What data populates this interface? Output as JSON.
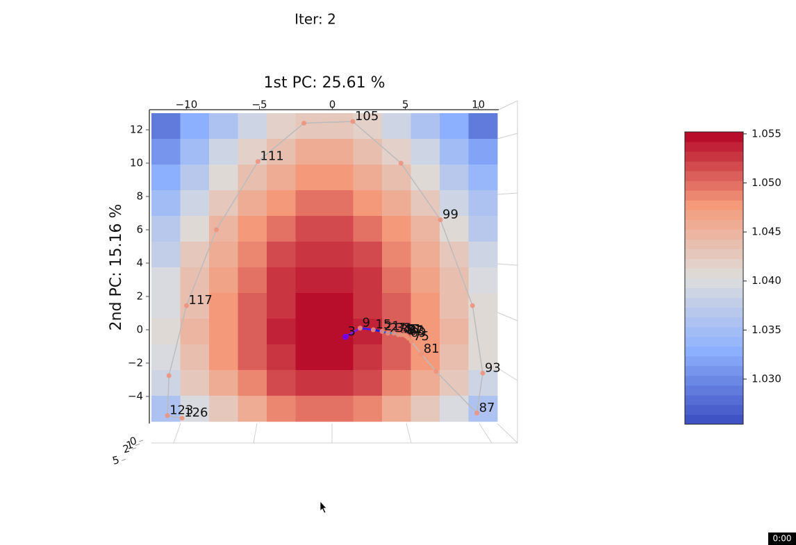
{
  "chart_data": {
    "type": "heatmap",
    "suptitle": "Iter: 2",
    "title": "1st PC: 25.61 %",
    "ylabel": "2nd PC: 15.16 %",
    "xlim": [
      -12.4,
      11.3
    ],
    "ylim": [
      -5.5,
      13
    ],
    "xticks": [
      {
        "value": -10,
        "label": "−10"
      },
      {
        "value": -5,
        "label": "−5"
      },
      0,
      5,
      10
    ],
    "yticks": [
      {
        "value": -4,
        "label": "−4"
      },
      {
        "value": -2,
        "label": "−2"
      },
      0,
      2,
      4,
      6,
      8,
      10,
      12
    ],
    "zticks": [
      0,
      1,
      2,
      5
    ],
    "colormap": "coolwarm",
    "levels": 30,
    "clim": [
      1.0254,
      1.0552
    ],
    "cticks": [
      {
        "value": 1.03,
        "label": "1.030"
      },
      1.035,
      {
        "value": 1.04,
        "label": "1.040"
      },
      1.045,
      {
        "value": 1.05,
        "label": "1.050"
      },
      1.055
    ],
    "z": [
      [
        1.0285,
        1.0325,
        1.036,
        1.039,
        1.0415,
        1.0432,
        1.0432,
        1.0415,
        1.039,
        1.036,
        1.0325,
        1.029
      ],
      [
        1.031,
        1.035,
        1.0385,
        1.0415,
        1.044,
        1.0457,
        1.0457,
        1.044,
        1.0415,
        1.0385,
        1.035,
        1.0315
      ],
      [
        1.033,
        1.037,
        1.0405,
        1.0435,
        1.046,
        1.0477,
        1.0477,
        1.046,
        1.0435,
        1.0405,
        1.037,
        1.0335
      ],
      [
        1.035,
        1.039,
        1.0425,
        1.0455,
        1.048,
        1.0497,
        1.0497,
        1.048,
        1.0455,
        1.0425,
        1.039,
        1.0355
      ],
      [
        1.0368,
        1.0408,
        1.0443,
        1.0473,
        1.0498,
        1.0515,
        1.0515,
        1.0498,
        1.0473,
        1.0443,
        1.0408,
        1.0373
      ],
      [
        1.0383,
        1.0423,
        1.0458,
        1.0488,
        1.0513,
        1.053,
        1.053,
        1.0513,
        1.0488,
        1.0458,
        1.0423,
        1.0388
      ],
      [
        1.0395,
        1.0435,
        1.047,
        1.05,
        1.0525,
        1.0542,
        1.0542,
        1.0525,
        1.05,
        1.047,
        1.0435,
        1.04
      ],
      [
        1.0402,
        1.0442,
        1.0477,
        1.0507,
        1.0532,
        1.0549,
        1.0549,
        1.0532,
        1.0507,
        1.0477,
        1.0442,
        1.0407
      ],
      [
        1.0405,
        1.0445,
        1.048,
        1.051,
        1.0535,
        1.0552,
        1.0552,
        1.0535,
        1.051,
        1.048,
        1.0445,
        1.041
      ],
      [
        1.04,
        1.044,
        1.0475,
        1.0505,
        1.053,
        1.0547,
        1.0547,
        1.053,
        1.0505,
        1.0475,
        1.044,
        1.0405
      ],
      [
        1.0385,
        1.0425,
        1.046,
        1.049,
        1.0515,
        1.0532,
        1.0532,
        1.0515,
        1.049,
        1.046,
        1.0425,
        1.039
      ],
      [
        1.0355,
        1.0395,
        1.043,
        1.046,
        1.0485,
        1.0502,
        1.0502,
        1.0485,
        1.046,
        1.043,
        1.0395,
        1.036
      ]
    ],
    "path": {
      "color": "#bbbbbb",
      "point_color": "#f0907a",
      "x": [
        0.9,
        1.9,
        2.8,
        3.4,
        3.8,
        4.2,
        4.5,
        4.7,
        4.9,
        5.0,
        5.1,
        5.2,
        5.4,
        6.1,
        7.1,
        9.9,
        10.3,
        9.6,
        7.4,
        4.7,
        1.4,
        -1.95,
        -5.1,
        -7.95,
        -10,
        -11.2,
        -11.3,
        -10.3
      ],
      "y": [
        -0.42,
        0.1,
        0.0,
        -0.1,
        -0.2,
        -0.2,
        -0.3,
        -0.3,
        -0.3,
        -0.35,
        -0.4,
        -0.5,
        -0.7,
        -1.45,
        -2.5,
        -5.0,
        -2.6,
        1.45,
        6.6,
        10.0,
        12.5,
        12.4,
        10.1,
        6.0,
        1.45,
        -2.75,
        -5.15,
        -5.3
      ],
      "labels": [
        "3",
        "9",
        "15",
        "21",
        "27",
        "33",
        "39",
        "45",
        "51",
        "57",
        "63",
        "69",
        "75",
        "81",
        null,
        "87",
        "93",
        null,
        "99",
        null,
        "105",
        null,
        "111",
        null,
        "117",
        null,
        "123",
        "126"
      ]
    },
    "timer": "0:00"
  }
}
